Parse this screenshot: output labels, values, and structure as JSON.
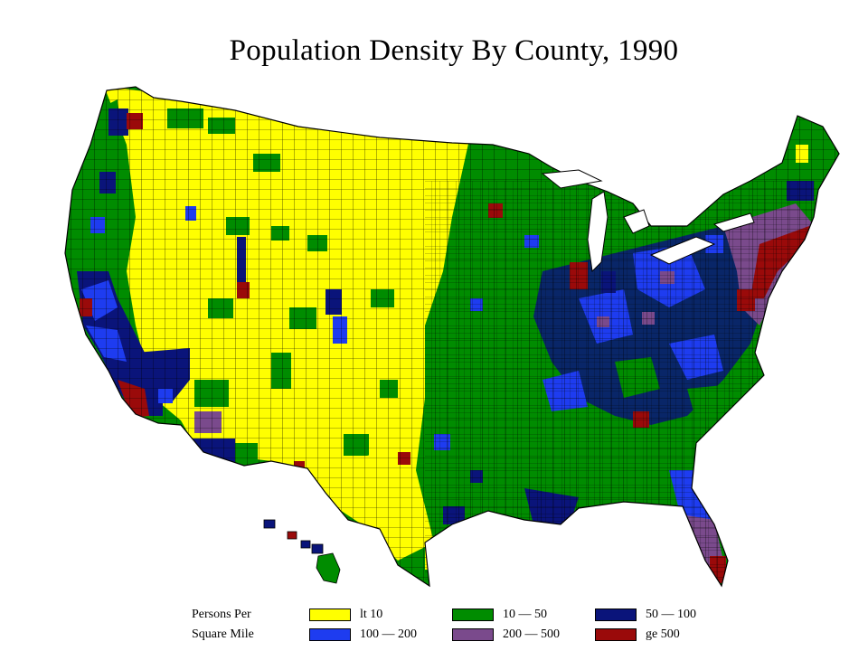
{
  "title": "Population Density By County, 1990",
  "legend": {
    "heading_line1": "Persons Per",
    "heading_line2": "Square Mile",
    "classes": [
      {
        "label": "lt  10",
        "color": "#ffff00"
      },
      {
        "label": "10 — 50",
        "color": "#008c00"
      },
      {
        "label": "50 — 100",
        "color": "#0a147a"
      },
      {
        "label": "100 — 200",
        "color": "#1e3cf0"
      },
      {
        "label": "200 — 500",
        "color": "#7a4a8c"
      },
      {
        "label": "ge  500",
        "color": "#9a0a0a"
      }
    ]
  },
  "colors": {
    "border": "#000000",
    "background": "#ffffff"
  }
}
